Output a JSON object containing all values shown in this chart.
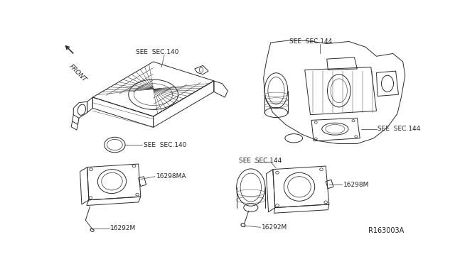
{
  "bg_color": "#ffffff",
  "line_color": "#2a2a2a",
  "text_color": "#222222",
  "fig_width": 6.4,
  "fig_height": 3.72,
  "dpi": 100,
  "labels": {
    "see_sec_140_top": "SEE  SEC.140",
    "see_sec_140_bot": "SEE  SEC.140",
    "part_16298MA": "16298MA",
    "part_16292M_left": "16292M",
    "see_sec_144_top": "SEE  SEC.144",
    "see_sec_144_mid": "SEE  SEC.144",
    "see_sec_144_bot_left": "SEE  SEC.144",
    "part_16298M_right": "16298M",
    "part_16292M_right": "16292M",
    "ref_code": "R163003A",
    "front_label": "FRONT"
  }
}
